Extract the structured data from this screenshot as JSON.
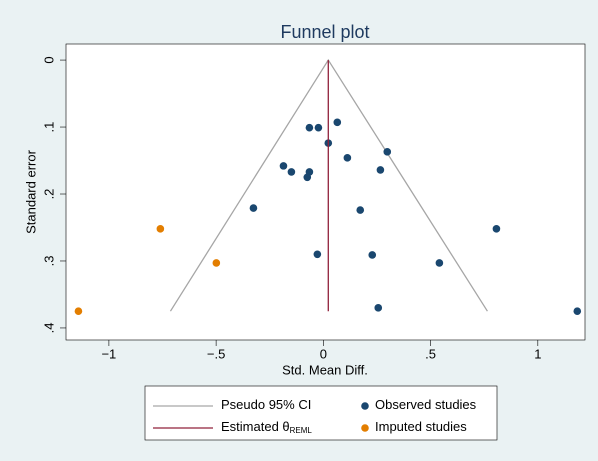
{
  "chart_data": {
    "type": "scatter",
    "title": "Funnel plot",
    "xlabel": "Std. Mean Diff.",
    "ylabel": "Standard error",
    "xlim": [
      -1.2,
      1.22
    ],
    "ylim": [
      -0.024,
      0.418
    ],
    "y_reversed": true,
    "xticks": [
      {
        "value": -1,
        "label": "−1"
      },
      {
        "value": -0.5,
        "label": "−.5"
      },
      0,
      {
        "value": 0.5,
        "label": ".5"
      },
      1
    ],
    "yticks": [
      0,
      {
        "value": 0.1,
        "label": ".1"
      },
      {
        "value": 0.2,
        "label": ".2"
      },
      {
        "value": 0.3,
        "label": ".3"
      },
      {
        "value": 0.4,
        "label": ".4"
      }
    ],
    "series": [
      {
        "name": "Pseudo 95% CI",
        "style": "line",
        "color": "#a6a6a6",
        "x": [
          -0.713,
          0.023,
          0.765
        ],
        "y": [
          0.375,
          0,
          0.375
        ]
      },
      {
        "name": "Observed studies",
        "style": "marker",
        "color": "#1a476f",
        "x": [
          -0.065,
          -0.023,
          0.065,
          0.023,
          0.298,
          0.112,
          0.266,
          -0.186,
          -0.149,
          -0.065,
          -0.075,
          -0.326,
          0.172,
          0.807,
          -0.028,
          0.228,
          0.541,
          0.256,
          1.184
        ],
        "y": [
          0.101,
          0.101,
          0.093,
          0.124,
          0.137,
          0.146,
          0.164,
          0.158,
          0.167,
          0.167,
          0.175,
          0.221,
          0.224,
          0.252,
          0.29,
          0.291,
          0.303,
          0.37,
          0.375
        ]
      },
      {
        "name": "Estimated θ",
        "subscript": "REML",
        "style": "line",
        "color": "#90213a",
        "x": [
          0.023,
          0.023
        ],
        "y": [
          0,
          0.375
        ]
      },
      {
        "name": "Imputed studies",
        "style": "marker",
        "color": "#e37e00",
        "x": [
          -0.76,
          -0.499,
          -1.142
        ],
        "y": [
          0.252,
          0.303,
          0.375
        ]
      }
    ]
  }
}
